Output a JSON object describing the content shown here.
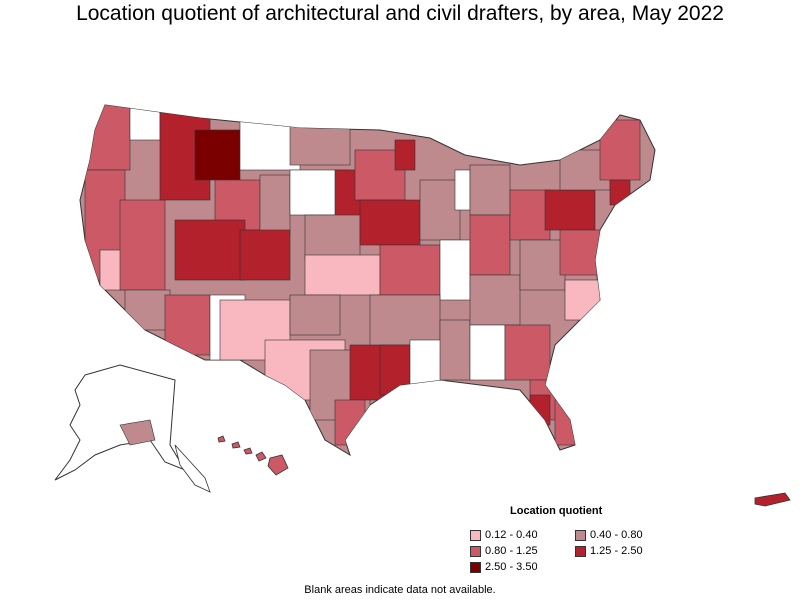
{
  "title": "Location quotient of architectural and civil drafters, by area, May 2022",
  "legend": {
    "title": "Location quotient",
    "items": [
      {
        "label": "0.12 - 0.40",
        "color": "#f9b8c0"
      },
      {
        "label": "0.40 - 0.80",
        "color": "#bf8a8e"
      },
      {
        "label": "0.80 - 1.25",
        "color": "#cc5a66"
      },
      {
        "label": "1.25 - 2.50",
        "color": "#b3222c"
      },
      {
        "label": "2.50 - 3.50",
        "color": "#7a0000"
      }
    ]
  },
  "footnote": "Blank areas indicate data not available.",
  "colors": {
    "blank": "#ffffff",
    "border": "#333333"
  }
}
